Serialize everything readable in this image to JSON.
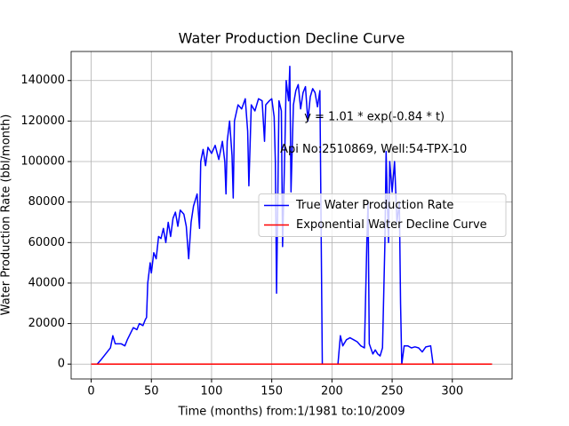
{
  "chart_data": {
    "type": "line",
    "title": "Water Production Decline Curve",
    "xlabel": "Time (months) from:1/1981 to:10/2009",
    "ylabel": "Water Production Rate (bbl/month)",
    "annotations": [
      {
        "text": "y = 1.01 * exp(-0.84 * t)",
        "x": 177,
        "y": 122000
      },
      {
        "text": "Api No:2510869, Well:54-TPX-10",
        "x": 157,
        "y": 106000
      }
    ],
    "xlim": [
      -16.65,
      349.65
    ],
    "ylim": [
      -7350,
      154350
    ],
    "xticks": [
      0,
      50,
      100,
      150,
      200,
      250,
      300
    ],
    "yticks": [
      0,
      20000,
      40000,
      60000,
      80000,
      100000,
      120000,
      140000
    ],
    "grid": true,
    "legend": "center right",
    "series": [
      {
        "name": "True Water Production Rate",
        "color": "#0000ff",
        "x": [
          0,
          5,
          8,
          12,
          16,
          18,
          20,
          25,
          28,
          30,
          35,
          38,
          40,
          43,
          45,
          46,
          47,
          49,
          50,
          52,
          54,
          56,
          58,
          60,
          62,
          64,
          66,
          68,
          70,
          72,
          74,
          77,
          79,
          81,
          83,
          85,
          88,
          90,
          91,
          93,
          95,
          97,
          100,
          103,
          106,
          109,
          111,
          112,
          113,
          115,
          117,
          118,
          119,
          122,
          125,
          128,
          130,
          131,
          133,
          136,
          139,
          142,
          144,
          145,
          148,
          150,
          152,
          153,
          154,
          155,
          156,
          158,
          159,
          161,
          162,
          164,
          165,
          166,
          168,
          170,
          172,
          174,
          176,
          178,
          180,
          182,
          184,
          186,
          188,
          190,
          192,
          205,
          207,
          209,
          212,
          215,
          218,
          221,
          224,
          227,
          229,
          230,
          231,
          234,
          236,
          238,
          240,
          242,
          244,
          245,
          246,
          247,
          248,
          250,
          252,
          254,
          256,
          257,
          258,
          260,
          263,
          266,
          269,
          272,
          275,
          278,
          282,
          284,
          333
        ],
        "values": [
          0,
          0,
          2000,
          5000,
          8000,
          14000,
          10000,
          10000,
          9000,
          12000,
          18000,
          17000,
          20000,
          19000,
          22000,
          23000,
          40000,
          50000,
          45000,
          55000,
          52000,
          63000,
          62000,
          67000,
          60000,
          70000,
          63000,
          72000,
          75000,
          68000,
          76000,
          74000,
          68000,
          52000,
          70000,
          78000,
          84000,
          67000,
          100000,
          106000,
          98000,
          107000,
          104000,
          108000,
          101000,
          110000,
          100000,
          84000,
          110000,
          120000,
          103000,
          82000,
          120000,
          128000,
          126000,
          131000,
          115000,
          88000,
          128000,
          125000,
          131000,
          130000,
          110000,
          128000,
          130000,
          131000,
          122000,
          100000,
          35000,
          80000,
          130000,
          125000,
          58000,
          110000,
          140000,
          130000,
          147000,
          85000,
          128000,
          135000,
          138000,
          126000,
          134000,
          137000,
          120000,
          132000,
          136000,
          134000,
          127000,
          135000,
          0,
          0,
          14000,
          9000,
          12000,
          13000,
          12000,
          11000,
          9000,
          8000,
          60000,
          80000,
          10000,
          5000,
          7000,
          5000,
          4000,
          8000,
          60000,
          105000,
          80000,
          60000,
          100000,
          85000,
          100000,
          70000,
          80000,
          30000,
          0,
          9000,
          9000,
          8000,
          8500,
          8000,
          6000,
          8500,
          9000,
          0,
          0
        ]
      },
      {
        "name": "Exponential Water Decline Curve",
        "color": "#ff0000",
        "x": [
          0,
          333
        ],
        "values": [
          1.01,
          0
        ]
      }
    ]
  }
}
